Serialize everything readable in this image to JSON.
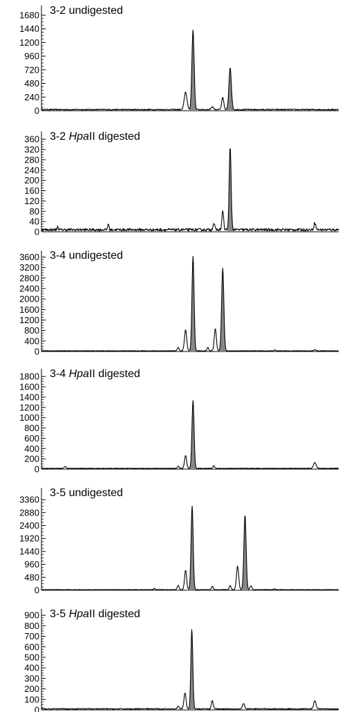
{
  "figure": {
    "colors": {
      "trace": "#000000",
      "fill": "#888888",
      "background": "#ffffff"
    }
  },
  "chart_data": [
    {
      "type": "line",
      "title_parts": [
        {
          "text": "3-2 undigested",
          "italic": false
        }
      ],
      "yticks": [
        "0",
        "240",
        "480",
        "720",
        "960",
        "1200",
        "1440",
        "1680"
      ],
      "ylim": [
        0,
        1850
      ],
      "xlim": [
        0,
        100
      ],
      "baseline": 20,
      "noise": 10,
      "peaks": [
        {
          "x": 48.5,
          "height": 310,
          "width": 0.9,
          "filled": false
        },
        {
          "x": 51.0,
          "height": 1400,
          "width": 0.75,
          "filled": true
        },
        {
          "x": 57.5,
          "height": 50,
          "width": 0.8,
          "filled": false
        },
        {
          "x": 61.0,
          "height": 210,
          "width": 0.7,
          "filled": false
        },
        {
          "x": 63.5,
          "height": 740,
          "width": 0.8,
          "filled": true
        }
      ]
    },
    {
      "type": "line",
      "title_parts": [
        {
          "text": "3-2 ",
          "italic": false
        },
        {
          "text": "Hpa",
          "italic": true
        },
        {
          "text": "II digested",
          "italic": false
        }
      ],
      "yticks": [
        "0",
        "40",
        "80",
        "120",
        "160",
        "200",
        "240",
        "280",
        "320",
        "360"
      ],
      "ylim": [
        0,
        390
      ],
      "xlim": [
        0,
        100
      ],
      "baseline": 8,
      "noise": 5,
      "peaks": [
        {
          "x": 5.5,
          "height": 12,
          "width": 0.4,
          "filled": false
        },
        {
          "x": 22.5,
          "height": 25,
          "width": 0.4,
          "filled": false
        },
        {
          "x": 58.0,
          "height": 25,
          "width": 0.6,
          "filled": false
        },
        {
          "x": 61.0,
          "height": 75,
          "width": 0.55,
          "filled": false
        },
        {
          "x": 63.5,
          "height": 320,
          "width": 0.65,
          "filled": true
        },
        {
          "x": 92.0,
          "height": 28,
          "width": 0.6,
          "filled": false
        }
      ]
    },
    {
      "type": "line",
      "title_parts": [
        {
          "text": "3-4 undigested",
          "italic": false
        }
      ],
      "yticks": [
        "0",
        "400",
        "800",
        "1200",
        "1600",
        "2000",
        "2400",
        "2800",
        "3200",
        "3600"
      ],
      "ylim": [
        0,
        3850
      ],
      "xlim": [
        0,
        100
      ],
      "baseline": 25,
      "noise": 10,
      "peaks": [
        {
          "x": 46.0,
          "height": 130,
          "width": 0.6,
          "filled": false
        },
        {
          "x": 48.5,
          "height": 800,
          "width": 0.75,
          "filled": false
        },
        {
          "x": 51.0,
          "height": 3600,
          "width": 0.7,
          "filled": true
        },
        {
          "x": 56.0,
          "height": 130,
          "width": 0.5,
          "filled": false
        },
        {
          "x": 58.5,
          "height": 850,
          "width": 0.7,
          "filled": false
        },
        {
          "x": 61.0,
          "height": 3150,
          "width": 0.75,
          "filled": true
        },
        {
          "x": 78.5,
          "height": 30,
          "width": 0.6,
          "filled": false
        },
        {
          "x": 92.0,
          "height": 40,
          "width": 0.8,
          "filled": false
        }
      ]
    },
    {
      "type": "line",
      "title_parts": [
        {
          "text": "3-4 ",
          "italic": false
        },
        {
          "text": "Hpa",
          "italic": true
        },
        {
          "text": "II digested",
          "italic": false
        }
      ],
      "yticks": [
        "0",
        "200",
        "400",
        "600",
        "800",
        "1000",
        "1200",
        "1400",
        "1600",
        "1800"
      ],
      "ylim": [
        0,
        1950
      ],
      "xlim": [
        0,
        100
      ],
      "baseline": 15,
      "noise": 6,
      "peaks": [
        {
          "x": 8.0,
          "height": 35,
          "width": 0.6,
          "filled": false
        },
        {
          "x": 46.0,
          "height": 40,
          "width": 0.6,
          "filled": false
        },
        {
          "x": 48.5,
          "height": 250,
          "width": 0.7,
          "filled": false
        },
        {
          "x": 51.0,
          "height": 1320,
          "width": 0.7,
          "filled": true
        },
        {
          "x": 58.0,
          "height": 50,
          "width": 0.6,
          "filled": false
        },
        {
          "x": 92.0,
          "height": 110,
          "width": 0.9,
          "filled": false
        }
      ]
    },
    {
      "type": "line",
      "title_parts": [
        {
          "text": "3-5 undigested",
          "italic": false
        }
      ],
      "yticks": [
        "0",
        "480",
        "960",
        "1440",
        "1920",
        "2400",
        "2880",
        "3360"
      ],
      "ylim": [
        0,
        3800
      ],
      "xlim": [
        0,
        100
      ],
      "baseline": 20,
      "noise": 8,
      "peaks": [
        {
          "x": 38.0,
          "height": 50,
          "width": 0.5,
          "filled": false
        },
        {
          "x": 46.0,
          "height": 160,
          "width": 0.6,
          "filled": false
        },
        {
          "x": 48.5,
          "height": 720,
          "width": 0.7,
          "filled": false
        },
        {
          "x": 50.7,
          "height": 3100,
          "width": 0.7,
          "filled": true
        },
        {
          "x": 57.5,
          "height": 120,
          "width": 0.6,
          "filled": false
        },
        {
          "x": 63.5,
          "height": 150,
          "width": 0.6,
          "filled": false
        },
        {
          "x": 66.0,
          "height": 870,
          "width": 0.75,
          "filled": false
        },
        {
          "x": 68.5,
          "height": 2780,
          "width": 0.75,
          "filled": true
        },
        {
          "x": 70.5,
          "height": 150,
          "width": 0.6,
          "filled": false
        },
        {
          "x": 78.5,
          "height": 30,
          "width": 0.6,
          "filled": false
        }
      ]
    },
    {
      "type": "line",
      "title_parts": [
        {
          "text": "3-5 ",
          "italic": false
        },
        {
          "text": "Hpa",
          "italic": true
        },
        {
          "text": "II digested",
          "italic": false
        }
      ],
      "yticks": [
        "0",
        "100",
        "200",
        "300",
        "400",
        "500",
        "600",
        "700",
        "800",
        "900"
      ],
      "ylim": [
        0,
        960
      ],
      "xlim": [
        0,
        100
      ],
      "baseline": 10,
      "noise": 5,
      "peaks": [
        {
          "x": 46.0,
          "height": 30,
          "width": 0.6,
          "filled": false
        },
        {
          "x": 48.3,
          "height": 150,
          "width": 0.7,
          "filled": false
        },
        {
          "x": 50.6,
          "height": 760,
          "width": 0.65,
          "filled": true
        },
        {
          "x": 57.5,
          "height": 80,
          "width": 0.6,
          "filled": false
        },
        {
          "x": 68.0,
          "height": 50,
          "width": 0.7,
          "filled": false
        },
        {
          "x": 92.0,
          "height": 75,
          "width": 0.8,
          "filled": false
        }
      ]
    }
  ]
}
